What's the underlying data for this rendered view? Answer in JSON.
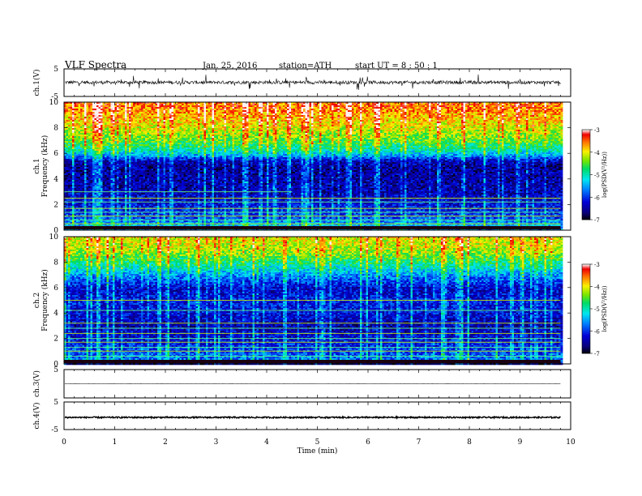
{
  "header": {
    "title": "VLF Spectra",
    "date": "Jan. 25, 2016",
    "station": "station=ATH",
    "start": "start  UT =   8 : 50 : 1"
  },
  "chart_data": {
    "type": "heatmap",
    "xlabel": "Time (min)",
    "xlim": [
      0,
      10
    ],
    "x_ticks": [
      "0",
      "1",
      "2",
      "3",
      "4",
      "5",
      "6",
      "7",
      "8",
      "9",
      "10"
    ],
    "data_end_min": 9.8,
    "panels": [
      {
        "id": "ch1v",
        "type": "line",
        "ylabel": "ch.1(V)",
        "ylim": [
          -5,
          5
        ],
        "y_ticks": [
          "5",
          "-5"
        ],
        "baseline": 0.1,
        "noise_amplitude": 0.6,
        "description_level": "continuous noisy signal around 0 V with spikes"
      },
      {
        "id": "ch1spec",
        "type": "heatmap",
        "ylabel_top": "ch.1",
        "ylabel": "Frequency (kHz)",
        "ylim": [
          0,
          10
        ],
        "y_ticks": [
          "0",
          "2",
          "4",
          "6",
          "8",
          "10"
        ],
        "colorbar_label": "log(PSD(V²/Hz))",
        "colorbar_range": [
          -7,
          -3
        ],
        "colorbar_ticks": [
          "-3",
          "-4",
          "-5",
          "-6",
          "-7"
        ],
        "level_profile": [
          [
            0,
            -5.6
          ],
          [
            0.4,
            -5.4
          ],
          [
            1,
            -5.9
          ],
          [
            3,
            -6.4
          ],
          [
            5,
            -6.5
          ],
          [
            5.5,
            -6.3
          ],
          [
            5.9,
            -5.5
          ],
          [
            6.3,
            -5.0
          ],
          [
            7.2,
            -4.4
          ],
          [
            8.5,
            -3.9
          ],
          [
            9.5,
            -3.6
          ],
          [
            10,
            -3.5
          ]
        ],
        "lines_khz": [
          0.2,
          0.5,
          0.8,
          1.1,
          1.4,
          1.7,
          2.2,
          2.5,
          3.0
        ],
        "line_1_note": "yellow line at 3 kHz up to 4.5 min"
      },
      {
        "id": "ch2spec",
        "type": "heatmap",
        "ylabel_top": "ch.2",
        "ylabel": "Frequency (kHz)",
        "ylim": [
          0,
          10
        ],
        "y_ticks": [
          "0",
          "2",
          "4",
          "6",
          "8",
          "10"
        ],
        "colorbar_label": "log(PSD(V²/Hz))",
        "colorbar_range": [
          -7,
          -3
        ],
        "colorbar_ticks": [
          "-3",
          "-4",
          "-5",
          "-6",
          "-7"
        ],
        "level_profile": [
          [
            0,
            -6.9
          ],
          [
            0.3,
            -5.6
          ],
          [
            1,
            -5.9
          ],
          [
            2,
            -6.2
          ],
          [
            3,
            -6.4
          ],
          [
            4,
            -6.2
          ],
          [
            5,
            -6.1
          ],
          [
            6,
            -6.3
          ],
          [
            7,
            -5.6
          ],
          [
            8,
            -4.8
          ],
          [
            9,
            -4.2
          ],
          [
            10,
            -4.0
          ]
        ],
        "lines_khz": [
          0.6,
          1.0,
          1.3,
          1.7,
          2.0,
          2.4,
          2.8,
          3.2,
          4.2,
          5.0
        ]
      },
      {
        "id": "ch3v",
        "type": "line",
        "ylabel": "ch.3(V)",
        "ylim": [
          -5,
          5
        ],
        "y_ticks": [
          "5"
        ],
        "baseline": 0.0,
        "noise_amplitude": 0.02
      },
      {
        "id": "ch4v",
        "type": "line",
        "ylabel": "ch.4(V)",
        "ylim": [
          -5,
          5
        ],
        "y_ticks": [
          "5",
          "-5"
        ],
        "baseline": -0.6,
        "noise_amplitude": 0.25
      }
    ]
  }
}
